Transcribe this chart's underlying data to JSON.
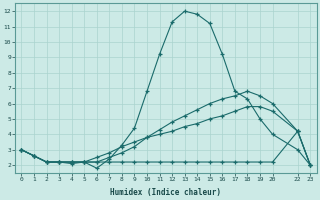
{
  "xlabel": "Humidex (Indice chaleur)",
  "xlim": [
    -0.5,
    23.5
  ],
  "ylim": [
    1.5,
    12.5
  ],
  "xtick_vals": [
    0,
    1,
    2,
    3,
    4,
    5,
    6,
    7,
    8,
    9,
    10,
    11,
    12,
    13,
    14,
    15,
    16,
    17,
    18,
    19,
    20,
    22,
    23
  ],
  "xtick_labels": [
    "0",
    "1",
    "2",
    "3",
    "4",
    "5",
    "6",
    "7",
    "8",
    "9",
    "10",
    "11",
    "12",
    "13",
    "14",
    "15",
    "16",
    "17",
    "18",
    "19",
    "20",
    "22",
    "23"
  ],
  "ytick_vals": [
    2,
    3,
    4,
    5,
    6,
    7,
    8,
    9,
    10,
    11,
    12
  ],
  "ytick_labels": [
    "2",
    "3",
    "4",
    "5",
    "6",
    "7",
    "8",
    "9",
    "10",
    "11",
    "12"
  ],
  "background_color": "#cceae6",
  "grid_color": "#aad4cf",
  "line_color": "#1a6b6b",
  "line1_x": [
    0,
    1,
    2,
    3,
    4,
    5,
    6,
    7,
    8,
    9,
    10,
    11,
    12,
    13,
    14,
    15,
    16,
    17,
    18,
    19,
    20,
    22,
    23
  ],
  "line1_y": [
    3.0,
    2.6,
    2.2,
    2.2,
    2.1,
    2.2,
    1.8,
    2.4,
    3.3,
    4.4,
    6.8,
    9.2,
    11.3,
    12.0,
    11.8,
    11.2,
    9.2,
    6.8,
    6.3,
    5.0,
    4.0,
    3.0,
    2.0
  ],
  "line2_x": [
    0,
    1,
    2,
    3,
    4,
    5,
    6,
    7,
    8,
    9,
    10,
    11,
    12,
    13,
    14,
    15,
    16,
    17,
    18,
    19,
    20,
    22,
    23
  ],
  "line2_y": [
    3.0,
    2.6,
    2.2,
    2.2,
    2.2,
    2.2,
    2.2,
    2.5,
    2.8,
    3.2,
    3.8,
    4.3,
    4.8,
    5.2,
    5.6,
    6.0,
    6.3,
    6.5,
    6.8,
    6.5,
    6.0,
    4.2,
    2.0
  ],
  "line3_x": [
    0,
    1,
    2,
    3,
    4,
    5,
    6,
    7,
    8,
    9,
    10,
    11,
    12,
    13,
    14,
    15,
    16,
    17,
    18,
    19,
    20,
    22,
    23
  ],
  "line3_y": [
    3.0,
    2.6,
    2.2,
    2.2,
    2.2,
    2.2,
    2.5,
    2.8,
    3.2,
    3.5,
    3.8,
    4.0,
    4.2,
    4.5,
    4.7,
    5.0,
    5.2,
    5.5,
    5.8,
    5.8,
    5.5,
    4.2,
    2.0
  ],
  "line4_x": [
    0,
    1,
    2,
    3,
    4,
    5,
    6,
    7,
    8,
    9,
    10,
    11,
    12,
    13,
    14,
    15,
    16,
    17,
    18,
    19,
    20,
    22,
    23
  ],
  "line4_y": [
    3.0,
    2.6,
    2.2,
    2.2,
    2.2,
    2.2,
    2.2,
    2.2,
    2.2,
    2.2,
    2.2,
    2.2,
    2.2,
    2.2,
    2.2,
    2.2,
    2.2,
    2.2,
    2.2,
    2.2,
    2.2,
    4.2,
    2.0
  ]
}
